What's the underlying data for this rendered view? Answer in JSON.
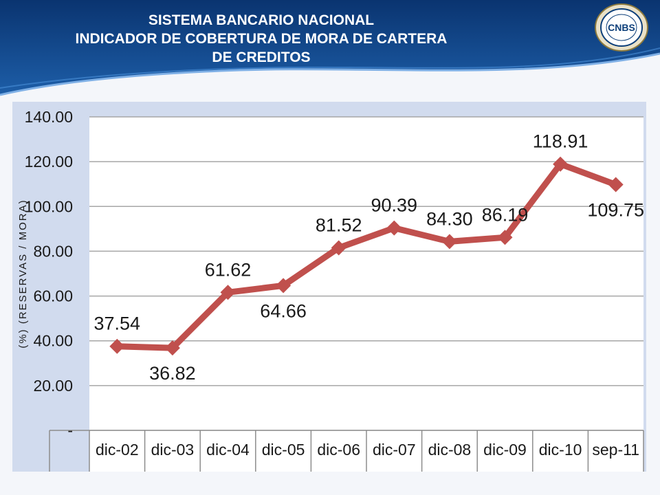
{
  "header": {
    "title_lines": [
      "SISTEMA BANCARIO NACIONAL",
      "INDICADOR DE COBERTURA DE MORA DE CARTERA",
      "DE CREDITOS"
    ],
    "logo_text": "CNBS",
    "colors": {
      "band_dark": "#0d3f7a",
      "band_light": "#2a75c4"
    }
  },
  "chart_data": {
    "type": "line",
    "categories": [
      "dic-02",
      "dic-03",
      "dic-04",
      "dic-05",
      "dic-06",
      "dic-07",
      "dic-08",
      "dic-09",
      "dic-10",
      "sep-11"
    ],
    "series": [
      {
        "values": [
          37.54,
          36.82,
          61.62,
          64.66,
          81.52,
          90.39,
          84.3,
          86.19,
          118.91,
          109.75
        ],
        "labels": [
          "37.54",
          "36.82",
          "61.62",
          "64.66",
          "81.52",
          "90.39",
          "84.30",
          "86.19",
          "118.91",
          "109.75"
        ],
        "color": "#c0504d",
        "marker": "diamond"
      }
    ],
    "ylabel": "(%) (RESERVAS / MORA)",
    "xlabel": "",
    "ylim": [
      0,
      140
    ],
    "yticks": [
      0,
      20,
      40,
      60,
      80,
      100,
      120,
      140
    ],
    "ytick_labels": [
      "-",
      "20.00",
      "40.00",
      "60.00",
      "80.00",
      "100.00",
      "120.00",
      "140.00"
    ],
    "grid": true,
    "category_axis_style": "table"
  }
}
